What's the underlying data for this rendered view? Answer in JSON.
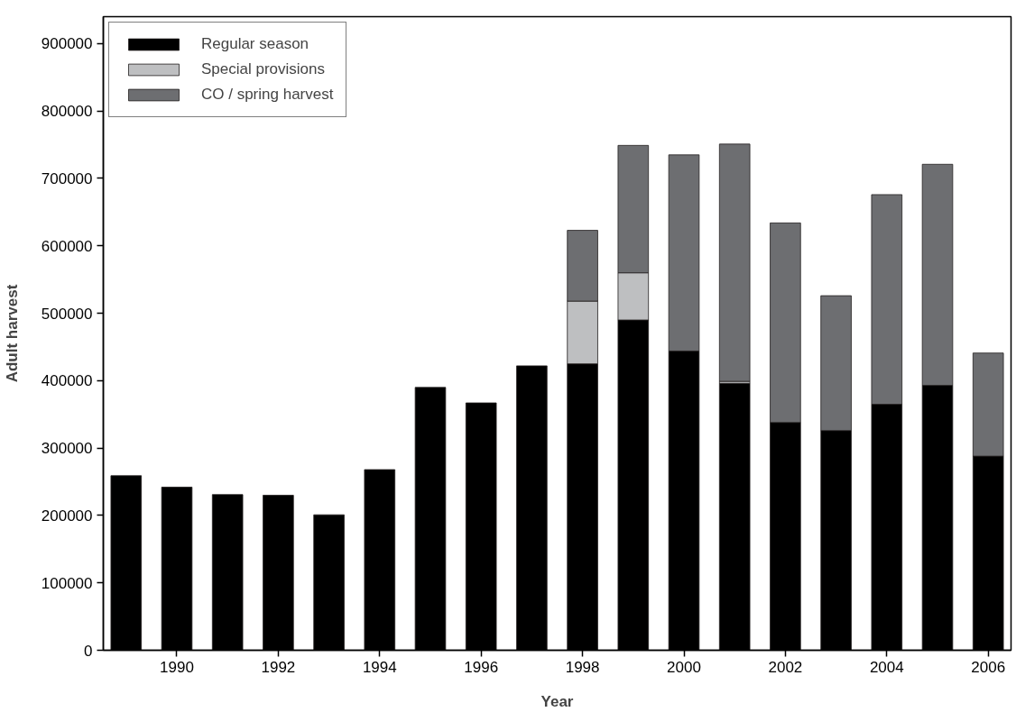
{
  "chart_data": {
    "type": "bar",
    "stacked": true,
    "xlabel": "Year",
    "ylabel": "Adult harvest",
    "x": [
      1989,
      1990,
      1991,
      1992,
      1993,
      1994,
      1995,
      1996,
      1997,
      1998,
      1999,
      2000,
      2001,
      2002,
      2003,
      2004,
      2005,
      2006
    ],
    "series": [
      {
        "name": "Regular season",
        "color": "#000000",
        "values": [
          259000,
          242000,
          231000,
          230000,
          201000,
          268000,
          390000,
          367000,
          422000,
          425000,
          490000,
          444000,
          396000,
          338000,
          326000,
          365000,
          393000,
          288000
        ]
      },
      {
        "name": "Special provisions",
        "color": "#bebfc1",
        "values": [
          null,
          null,
          null,
          null,
          null,
          null,
          null,
          null,
          null,
          93000,
          70000,
          null,
          3000,
          null,
          null,
          null,
          null,
          null
        ]
      },
      {
        "name": "CO / spring harvest",
        "color": "#6d6e71",
        "values": [
          null,
          null,
          null,
          null,
          null,
          null,
          null,
          null,
          null,
          105000,
          189000,
          291000,
          352000,
          296000,
          200000,
          311000,
          328000,
          153000
        ]
      }
    ],
    "xlim": [
      1988.55,
      2006.45
    ],
    "xticks": [
      1990,
      1992,
      1994,
      1996,
      1998,
      2000,
      2002,
      2004,
      2006
    ],
    "ylim": [
      0,
      940000
    ],
    "yticks": [
      0,
      100000,
      200000,
      300000,
      400000,
      500000,
      600000,
      700000,
      800000,
      900000
    ],
    "grid": false,
    "legend": "top left"
  }
}
